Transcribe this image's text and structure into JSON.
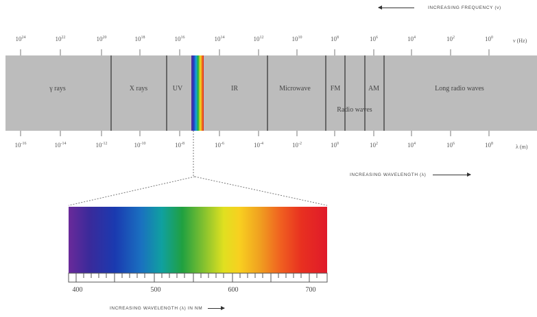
{
  "frequency_caption": "INCREASING FREQUENCY (ν)",
  "frequency_unit": "ν (Hz)",
  "frequency_ticks": [
    {
      "base": "10",
      "exp": "24"
    },
    {
      "base": "10",
      "exp": "22"
    },
    {
      "base": "10",
      "exp": "20"
    },
    {
      "base": "10",
      "exp": "18"
    },
    {
      "base": "10",
      "exp": "16"
    },
    {
      "base": "10",
      "exp": "14"
    },
    {
      "base": "10",
      "exp": "12"
    },
    {
      "base": "10",
      "exp": "10"
    },
    {
      "base": "10",
      "exp": "8"
    },
    {
      "base": "10",
      "exp": "6"
    },
    {
      "base": "10",
      "exp": "4"
    },
    {
      "base": "10",
      "exp": "2"
    },
    {
      "base": "10",
      "exp": "0"
    }
  ],
  "bands": {
    "gamma": "γ rays",
    "xray": "X rays",
    "uv": "UV",
    "ir": "IR",
    "microwave": "Microwave",
    "fm": "FM",
    "am": "AM",
    "radio": "Radio waves",
    "long_radio": "Long radio waves"
  },
  "wavelength_unit": "λ (m)",
  "wavelength_ticks": [
    {
      "base": "10",
      "exp": "-16"
    },
    {
      "base": "10",
      "exp": "-14"
    },
    {
      "base": "10",
      "exp": "-12"
    },
    {
      "base": "10",
      "exp": "-10"
    },
    {
      "base": "10",
      "exp": "-8"
    },
    {
      "base": "10",
      "exp": "-6"
    },
    {
      "base": "10",
      "exp": "-4"
    },
    {
      "base": "10",
      "exp": "-2"
    },
    {
      "base": "10",
      "exp": "0"
    },
    {
      "base": "10",
      "exp": "2"
    },
    {
      "base": "10",
      "exp": "4"
    },
    {
      "base": "10",
      "exp": "6"
    },
    {
      "base": "10",
      "exp": "8"
    }
  ],
  "wavelength_caption": "INCREASING WAVELENGTH (λ)",
  "visible_ticks": [
    "400",
    "500",
    "600",
    "700"
  ],
  "nm_caption": "INCREASING WAVELENGTH (λ) IN NM",
  "colors": {
    "band": "#bcbcbc",
    "divider": "#666666",
    "spectrum_start": "#6a2a9a",
    "spectrum_end": "#e01a2a"
  }
}
